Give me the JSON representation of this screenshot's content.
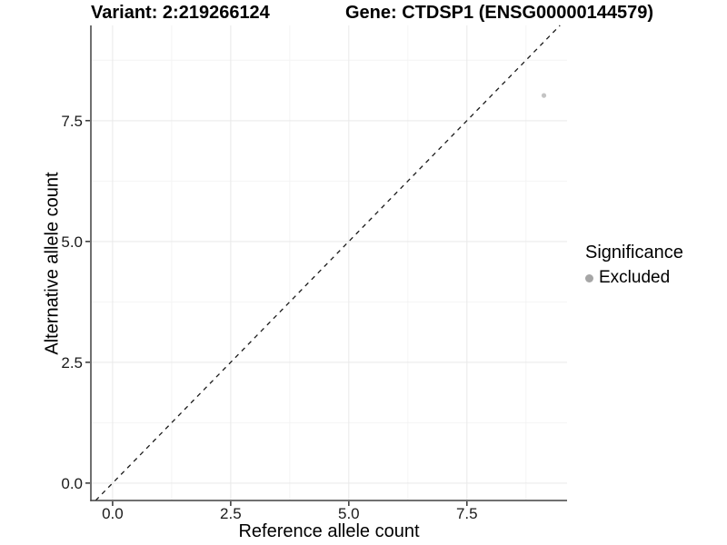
{
  "titles": {
    "variant": "Variant: 2:219266124",
    "gene": "Gene: CTDSP1 (ENSG00000144579)"
  },
  "chart_data": {
    "type": "scatter",
    "title": "Variant: 2:219266124    Gene: CTDSP1 (ENSG00000144579)",
    "xlabel": "Reference allele count",
    "ylabel": "Alternative allele count",
    "xlim": [
      -0.46,
      9.62
    ],
    "ylim": [
      -0.36,
      9.47
    ],
    "x_ticks": {
      "values": [
        0,
        2.5,
        5,
        7.5
      ],
      "labels": [
        "0.0",
        "2.5",
        "5.0",
        "7.5"
      ]
    },
    "y_ticks": {
      "values": [
        0,
        2.5,
        5,
        7.5
      ],
      "labels": [
        "0.0",
        "2.5",
        "5.0",
        "7.5"
      ]
    },
    "x_minor": [
      1.25,
      3.75,
      6.25,
      8.75
    ],
    "y_minor": [
      1.25,
      3.75,
      6.25,
      8.75
    ],
    "grid": {
      "show": true,
      "major_color": "#e9e9e9",
      "minor_color": "#f4f4f4"
    },
    "identity_line": {
      "x1": -0.36,
      "y1": -0.36,
      "x2": 9.47,
      "y2": 9.47,
      "style": "dashed",
      "color": "#1a1a1a",
      "width": 1.3
    },
    "series": [
      {
        "name": "Excluded",
        "color": "#c4c4c4",
        "marker_radius": 2.6,
        "points": [
          {
            "x": 9.13,
            "y": 8.02
          }
        ]
      }
    ],
    "legend": {
      "title": "Significance",
      "position": "right",
      "items": [
        {
          "label": "Excluded",
          "color": "#a6a6a6"
        }
      ]
    },
    "axis": {
      "spine_color": "#404040",
      "tick_color": "#333333",
      "tick_label_color": "#1a1a1a",
      "tick_label_size": 17
    }
  }
}
